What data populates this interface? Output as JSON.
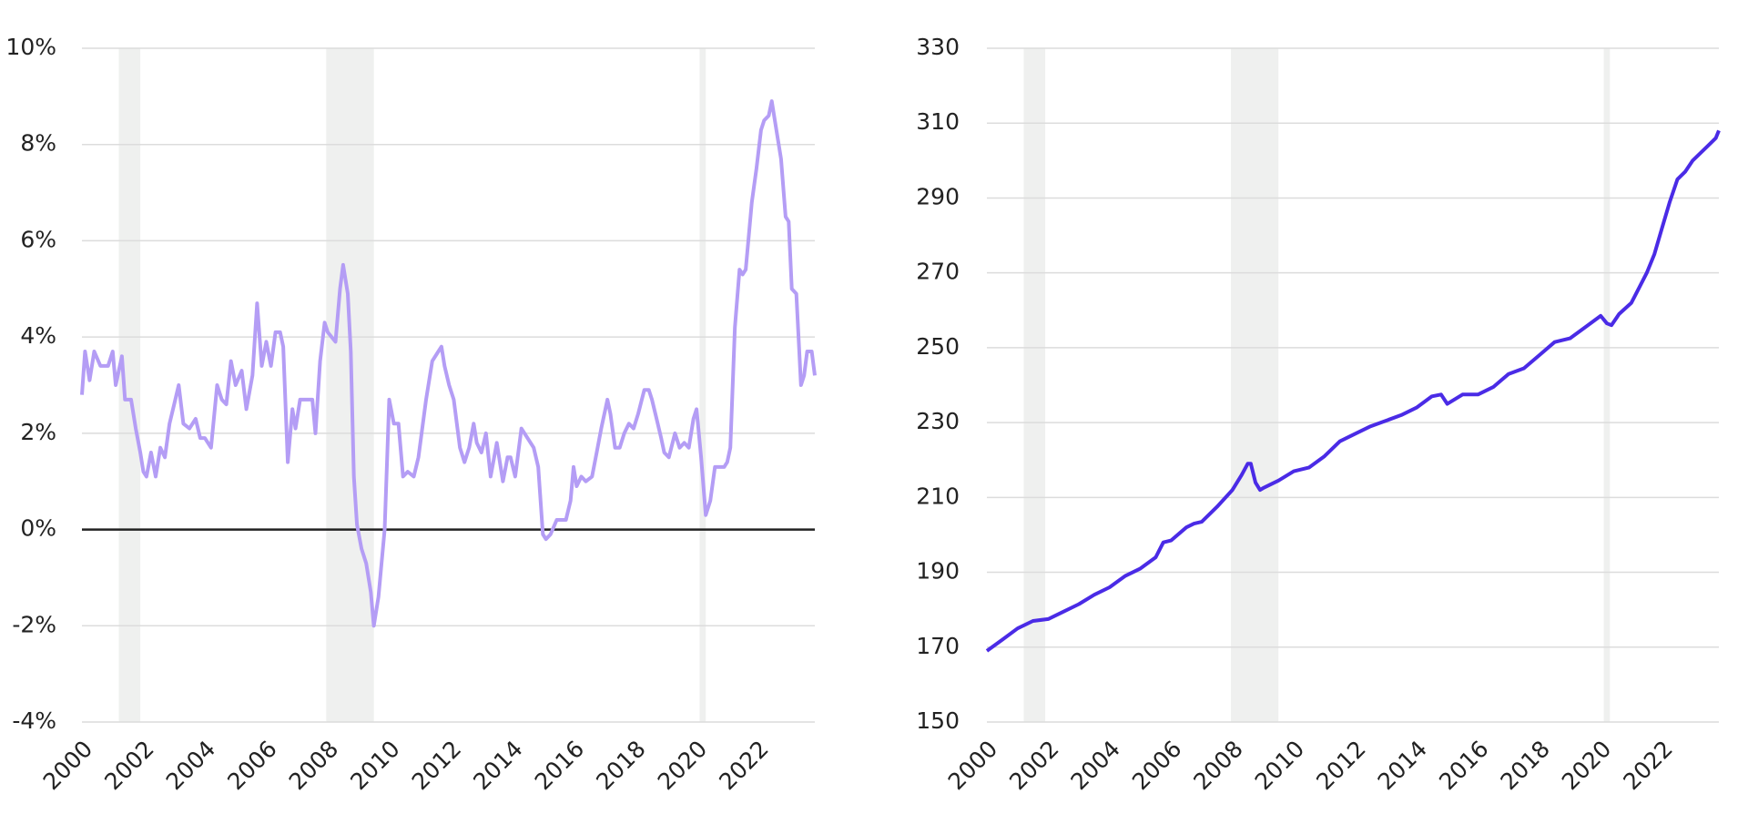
{
  "chart_data": [
    {
      "type": "line",
      "color": "#b49df5",
      "grid": true,
      "xlim": [
        2000,
        2023.85
      ],
      "ylim": [
        -4,
        10
      ],
      "xticks": [
        2000,
        2002,
        2004,
        2006,
        2008,
        2010,
        2012,
        2014,
        2016,
        2018,
        2020,
        2022
      ],
      "yticks": [
        {
          "value": -4,
          "label": "-4%"
        },
        {
          "value": -2,
          "label": "-2%"
        },
        {
          "value": 0,
          "label": "0%"
        },
        {
          "value": 2,
          "label": "2%"
        },
        {
          "value": 4,
          "label": "4%"
        },
        {
          "value": 6,
          "label": "6%"
        },
        {
          "value": 8,
          "label": "8%"
        },
        {
          "value": 10,
          "label": "10%"
        }
      ],
      "recessions": [
        [
          2001.2,
          2001.9
        ],
        [
          2007.95,
          2009.5
        ],
        [
          2020.1,
          2020.3
        ]
      ],
      "x": [
        2000.0,
        2000.1,
        2000.25,
        2000.4,
        2000.6,
        2000.85,
        2001.0,
        2001.1,
        2001.3,
        2001.4,
        2001.6,
        2001.75,
        2001.9,
        2002.0,
        2002.1,
        2002.25,
        2002.4,
        2002.55,
        2002.7,
        2002.85,
        2003.0,
        2003.15,
        2003.3,
        2003.5,
        2003.7,
        2003.85,
        2004.0,
        2004.2,
        2004.4,
        2004.55,
        2004.7,
        2004.85,
        2005.0,
        2005.2,
        2005.35,
        2005.55,
        2005.7,
        2005.85,
        2006.0,
        2006.15,
        2006.3,
        2006.45,
        2006.55,
        2006.7,
        2006.85,
        2006.95,
        2007.1,
        2007.3,
        2007.5,
        2007.6,
        2007.75,
        2007.9,
        2008.0,
        2008.25,
        2008.4,
        2008.5,
        2008.65,
        2008.75,
        2008.85,
        2008.95,
        2009.1,
        2009.25,
        2009.4,
        2009.5,
        2009.65,
        2009.85,
        2010.0,
        2010.15,
        2010.3,
        2010.45,
        2010.6,
        2010.8,
        2010.95,
        2011.2,
        2011.4,
        2011.6,
        2011.7,
        2011.8,
        2011.95,
        2012.1,
        2012.3,
        2012.45,
        2012.6,
        2012.75,
        2012.85,
        2013.0,
        2013.15,
        2013.3,
        2013.5,
        2013.7,
        2013.85,
        2013.95,
        2014.1,
        2014.3,
        2014.5,
        2014.7,
        2014.85,
        2015.0,
        2015.1,
        2015.25,
        2015.45,
        2015.6,
        2015.75,
        2015.9,
        2016.0,
        2016.1,
        2016.25,
        2016.4,
        2016.6,
        2016.75,
        2016.9,
        2017.1,
        2017.2,
        2017.35,
        2017.5,
        2017.65,
        2017.8,
        2017.95,
        2018.1,
        2018.3,
        2018.45,
        2018.55,
        2018.7,
        2018.85,
        2018.95,
        2019.1,
        2019.3,
        2019.45,
        2019.6,
        2019.75,
        2019.9,
        2020.0,
        2020.15,
        2020.3,
        2020.45,
        2020.6,
        2020.75,
        2020.9,
        2021.0,
        2021.1,
        2021.25,
        2021.4,
        2021.5,
        2021.6,
        2021.8,
        2021.95,
        2022.1,
        2022.2,
        2022.35,
        2022.45,
        2022.6,
        2022.75,
        2022.9,
        2023.0,
        2023.1,
        2023.25,
        2023.4,
        2023.5,
        2023.6,
        2023.75,
        2023.85
      ],
      "values": [
        2.8,
        3.7,
        3.1,
        3.7,
        3.4,
        3.4,
        3.7,
        3.0,
        3.6,
        2.7,
        2.7,
        2.1,
        1.6,
        1.2,
        1.1,
        1.6,
        1.1,
        1.7,
        1.5,
        2.2,
        2.6,
        3.0,
        2.2,
        2.1,
        2.3,
        1.9,
        1.9,
        1.7,
        3.0,
        2.7,
        2.6,
        3.5,
        3.0,
        3.3,
        2.5,
        3.2,
        4.7,
        3.4,
        3.9,
        3.4,
        4.1,
        4.1,
        3.8,
        1.4,
        2.5,
        2.1,
        2.7,
        2.7,
        2.7,
        2.0,
        3.5,
        4.3,
        4.1,
        3.9,
        5.0,
        5.5,
        4.9,
        3.7,
        1.1,
        0.1,
        -0.4,
        -0.7,
        -1.3,
        -2.0,
        -1.4,
        0.0,
        2.7,
        2.2,
        2.2,
        1.1,
        1.2,
        1.1,
        1.5,
        2.7,
        3.5,
        3.7,
        3.8,
        3.4,
        3.0,
        2.7,
        1.7,
        1.4,
        1.7,
        2.2,
        1.8,
        1.6,
        2.0,
        1.1,
        1.8,
        1.0,
        1.5,
        1.5,
        1.1,
        2.1,
        1.9,
        1.7,
        1.3,
        -0.1,
        -0.2,
        -0.1,
        0.2,
        0.2,
        0.2,
        0.6,
        1.3,
        0.9,
        1.1,
        1.0,
        1.1,
        1.6,
        2.1,
        2.7,
        2.4,
        1.7,
        1.7,
        2.0,
        2.2,
        2.1,
        2.4,
        2.9,
        2.9,
        2.7,
        2.3,
        1.9,
        1.6,
        1.5,
        2.0,
        1.7,
        1.8,
        1.7,
        2.3,
        2.5,
        1.5,
        0.3,
        0.6,
        1.3,
        1.3,
        1.3,
        1.4,
        1.7,
        4.2,
        5.4,
        5.3,
        5.4,
        6.8,
        7.5,
        8.3,
        8.5,
        8.6,
        8.9,
        8.3,
        7.7,
        6.5,
        6.4,
        5.0,
        4.9,
        3.0,
        3.2,
        3.7,
        3.7,
        3.2
      ]
    },
    {
      "type": "line",
      "color": "#4a2be6",
      "grid": true,
      "xlim": [
        2000,
        2023.85
      ],
      "ylim": [
        150,
        330
      ],
      "xticks": [
        2000,
        2002,
        2004,
        2006,
        2008,
        2010,
        2012,
        2014,
        2016,
        2018,
        2020,
        2022
      ],
      "yticks": [
        150,
        170,
        190,
        210,
        230,
        250,
        270,
        290,
        310,
        330
      ],
      "recessions": [
        [
          2001.2,
          2001.9
        ],
        [
          2007.95,
          2009.5
        ],
        [
          2020.1,
          2020.3
        ]
      ],
      "x": [
        2000.0,
        2000.5,
        2001.0,
        2001.5,
        2002.0,
        2002.5,
        2003.0,
        2003.5,
        2004.0,
        2004.5,
        2005.0,
        2005.5,
        2005.75,
        2006.0,
        2006.5,
        2006.75,
        2007.0,
        2007.5,
        2008.0,
        2008.3,
        2008.5,
        2008.6,
        2008.75,
        2008.9,
        2009.0,
        2009.5,
        2010.0,
        2010.5,
        2011.0,
        2011.5,
        2012.0,
        2012.5,
        2013.0,
        2013.5,
        2014.0,
        2014.5,
        2014.8,
        2015.0,
        2015.5,
        2016.0,
        2016.5,
        2017.0,
        2017.5,
        2018.0,
        2018.5,
        2019.0,
        2019.5,
        2020.0,
        2020.2,
        2020.35,
        2020.6,
        2021.0,
        2021.25,
        2021.5,
        2021.75,
        2022.0,
        2022.25,
        2022.5,
        2022.75,
        2023.0,
        2023.25,
        2023.5,
        2023.75,
        2023.85
      ],
      "values": [
        169,
        172,
        175,
        177,
        177.5,
        179.5,
        181.5,
        184,
        186,
        189,
        191,
        194,
        198,
        198.5,
        202,
        203,
        203.5,
        207.5,
        212,
        216,
        219,
        219,
        214,
        212,
        212.5,
        214.5,
        217,
        218,
        221,
        225,
        227,
        229,
        230.5,
        232,
        234,
        237,
        237.5,
        235,
        237.5,
        237.5,
        239.5,
        243,
        244.5,
        248,
        251.5,
        252.5,
        255.5,
        258.5,
        256.5,
        256,
        259,
        262,
        266,
        270,
        275,
        282,
        289,
        295,
        297,
        300,
        302,
        304,
        306,
        308
      ]
    }
  ]
}
